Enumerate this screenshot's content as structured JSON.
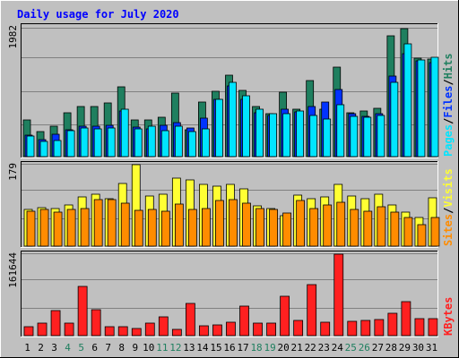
{
  "title": "Daily usage for July 2020",
  "colors": {
    "background": "#c0c0c0",
    "panel": "#c0c0c0",
    "title": "#0000ff",
    "hits": "#1f7f5f",
    "files": "#0033ff",
    "pages": "#00e5ff",
    "visits": "#ffff33",
    "sites": "#ff8c00",
    "kbytes": "#ff2020",
    "weekend_label": "#1f7f5f",
    "weekday_label": "#000000"
  },
  "legend": {
    "top": [
      {
        "text": "Hits",
        "color_key": "hits"
      },
      {
        "text": "Files",
        "color_key": "files"
      },
      {
        "text": "Pages",
        "color_key": "pages"
      }
    ],
    "middle": [
      {
        "text": "Visits",
        "color_key": "visits"
      },
      {
        "text": "Sites",
        "color_key": "sites"
      }
    ],
    "bottom": [
      {
        "text": "KBytes",
        "color_key": "kbytes"
      }
    ],
    "separator": "/"
  },
  "chart_data": [
    {
      "type": "bar",
      "title": "Daily usage for July 2020",
      "panel": "hits-files-pages",
      "ymax_label": "1982",
      "ylim": [
        0,
        1982
      ],
      "categories": [
        "1",
        "2",
        "3",
        "4",
        "5",
        "6",
        "7",
        "8",
        "9",
        "10",
        "11",
        "12",
        "13",
        "14",
        "15",
        "16",
        "17",
        "18",
        "19",
        "20",
        "21",
        "22",
        "23",
        "24",
        "25",
        "26",
        "27",
        "28",
        "29",
        "30",
        "31"
      ],
      "weekend_days": [
        "4",
        "5",
        "11",
        "12",
        "18",
        "19",
        "25",
        "26"
      ],
      "series": [
        {
          "name": "Hits",
          "values": [
            560,
            380,
            470,
            670,
            770,
            770,
            820,
            1070,
            560,
            560,
            600,
            970,
            410,
            830,
            1000,
            1240,
            1010,
            770,
            650,
            980,
            720,
            1160,
            720,
            1370,
            670,
            700,
            740,
            1850,
            1950,
            1510,
            1490
          ]
        },
        {
          "name": "Files",
          "values": [
            330,
            260,
            340,
            410,
            460,
            460,
            480,
            700,
            450,
            420,
            480,
            520,
            440,
            590,
            880,
            1080,
            870,
            670,
            630,
            720,
            690,
            760,
            830,
            1030,
            650,
            620,
            660,
            1230,
            1570,
            1460,
            1440
          ]
        },
        {
          "name": "Pages",
          "values": [
            320,
            230,
            240,
            390,
            440,
            430,
            440,
            720,
            420,
            460,
            390,
            460,
            380,
            430,
            870,
            1140,
            930,
            720,
            660,
            660,
            700,
            630,
            580,
            790,
            620,
            600,
            630,
            1140,
            1720,
            1470,
            1520
          ]
        }
      ]
    },
    {
      "type": "bar",
      "panel": "visits-sites",
      "ymax_label": "179",
      "ylim": [
        0,
        179
      ],
      "categories": [
        "1",
        "2",
        "3",
        "4",
        "5",
        "6",
        "7",
        "8",
        "9",
        "10",
        "11",
        "12",
        "13",
        "14",
        "15",
        "16",
        "17",
        "18",
        "19",
        "20",
        "21",
        "22",
        "23",
        "24",
        "25",
        "26",
        "27",
        "28",
        "29",
        "30",
        "31"
      ],
      "series": [
        {
          "name": "Visits",
          "values": [
            80,
            85,
            82,
            90,
            108,
            114,
            104,
            138,
            179,
            110,
            115,
            150,
            145,
            136,
            131,
            136,
            125,
            88,
            83,
            67,
            112,
            104,
            108,
            135,
            111,
            104,
            115,
            91,
            74,
            63,
            107
          ]
        },
        {
          "name": "Sites",
          "values": [
            77,
            80,
            75,
            80,
            82,
            103,
            103,
            95,
            78,
            81,
            76,
            92,
            80,
            82,
            100,
            102,
            94,
            83,
            80,
            73,
            100,
            82,
            91,
            96,
            81,
            77,
            86,
            74,
            62,
            47,
            62
          ]
        }
      ]
    },
    {
      "type": "bar",
      "panel": "kbytes",
      "ymax_label": "161644",
      "ylim": [
        0,
        161644
      ],
      "categories": [
        "1",
        "2",
        "3",
        "4",
        "5",
        "6",
        "7",
        "8",
        "9",
        "10",
        "11",
        "12",
        "13",
        "14",
        "15",
        "16",
        "17",
        "18",
        "19",
        "20",
        "21",
        "22",
        "23",
        "24",
        "25",
        "26",
        "27",
        "28",
        "29",
        "30",
        "31"
      ],
      "series": [
        {
          "name": "KBytes",
          "values": [
            18000,
            25000,
            50000,
            25000,
            98000,
            52000,
            18000,
            18000,
            14000,
            24000,
            38000,
            12000,
            64000,
            20000,
            22000,
            26000,
            58000,
            25000,
            25000,
            78000,
            30000,
            102000,
            26000,
            161644,
            28000,
            30000,
            32000,
            44000,
            68000,
            34000,
            34000
          ]
        }
      ]
    }
  ]
}
